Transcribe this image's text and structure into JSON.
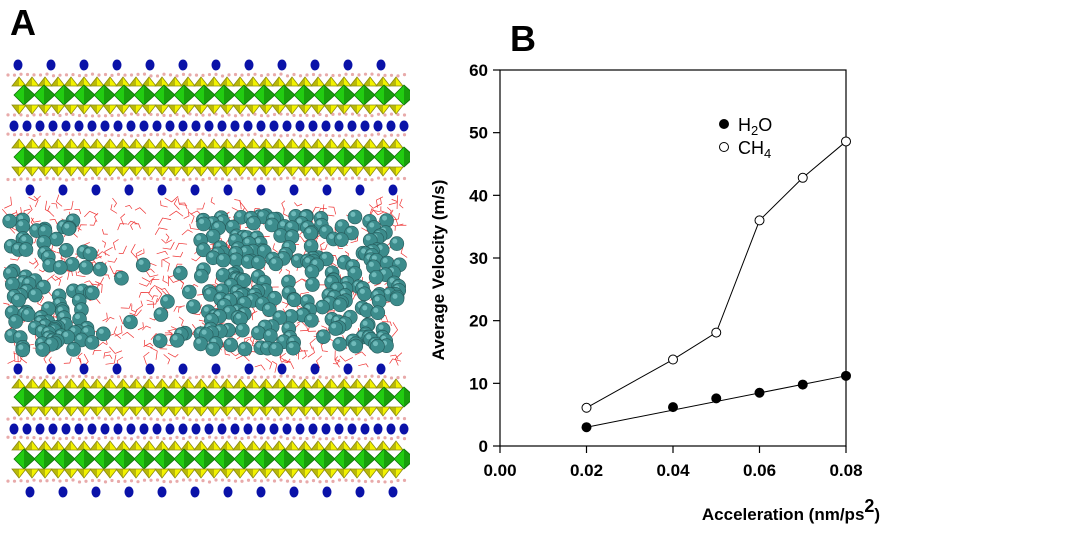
{
  "panels": {
    "a_label": "A",
    "b_label": "B"
  },
  "colors": {
    "silicon_tetrahedra": "#f2f200",
    "silicon_tetrahedra_dark": "#8a8a10",
    "octahedra": "#22cc11",
    "octahedra_dark": "#0e6f08",
    "potassium_ions": "#0a12a8",
    "surface_hydrogens": "#e8aaaa",
    "water_network": "#ee3333",
    "methane_spheres": "#3c8c8c",
    "methane_spheres_light": "#7cc6c6"
  },
  "chart_data": {
    "type": "line",
    "xlabel": "Acceleration (nm/ps",
    "xlabel_sup": "2",
    "xlabel_close": ")",
    "ylabel": "Average Velocity (m/s)",
    "xlim": [
      0.0,
      0.08
    ],
    "ylim": [
      0,
      60
    ],
    "x_ticks": [
      "0.00",
      "0.02",
      "0.04",
      "0.06",
      "0.08"
    ],
    "y_ticks": [
      "0",
      "10",
      "20",
      "30",
      "40",
      "50",
      "60"
    ],
    "grid": false,
    "legend_position": "top-center",
    "series": [
      {
        "name": "H2O",
        "label_main": "H",
        "label_sub": "2",
        "label_end": "O",
        "marker": "filled-circle",
        "points": [
          [
            0.02,
            3.0
          ],
          [
            0.04,
            6.2
          ],
          [
            0.05,
            7.6
          ],
          [
            0.06,
            8.5
          ],
          [
            0.07,
            9.8
          ],
          [
            0.08,
            11.2
          ]
        ],
        "fit_line": [
          [
            0.02,
            3.0
          ],
          [
            0.08,
            11.2
          ]
        ]
      },
      {
        "name": "CH4",
        "label_main": "CH",
        "label_sub": "4",
        "label_end": "",
        "marker": "open-circle",
        "points": [
          [
            0.02,
            6.1
          ],
          [
            0.04,
            13.8
          ],
          [
            0.05,
            18.1
          ],
          [
            0.06,
            36.0
          ],
          [
            0.07,
            42.8
          ],
          [
            0.08,
            48.6
          ]
        ]
      }
    ]
  }
}
